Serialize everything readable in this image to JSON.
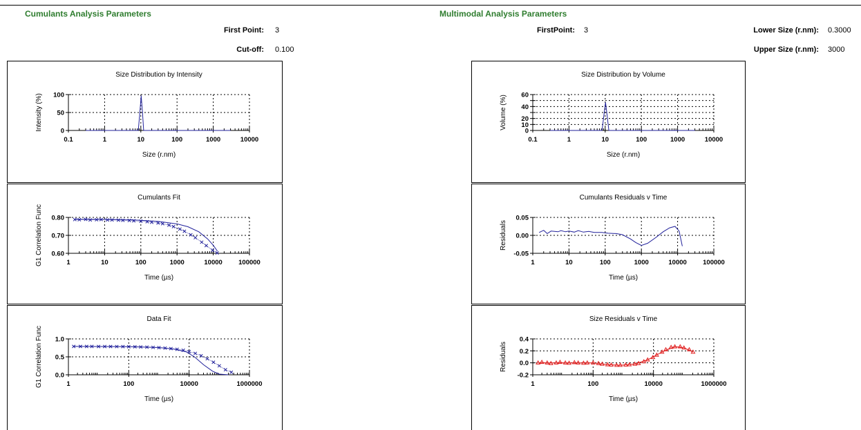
{
  "cumulants_params": {
    "title": "Cumulants Analysis Parameters",
    "first_point_label": "First Point:",
    "first_point_value": "3",
    "cutoff_label": "Cut-off:",
    "cutoff_value": "0.100"
  },
  "multimodal_params": {
    "title": "Multimodal Analysis Parameters",
    "first_point_label": "FirstPoint:",
    "first_point_value": "3",
    "lower_size_label": "Lower Size (r.nm):",
    "lower_size_value": "0.3000",
    "upper_size_label": "Upper Size (r.nm):",
    "upper_size_value": "3000"
  },
  "colors": {
    "section_title": "#2f7d2f",
    "series_blue": "#1f1f9a",
    "series_red": "#e02020"
  },
  "chart_data": [
    {
      "id": "size-intensity",
      "type": "line",
      "title": "Size Distribution by Intensity",
      "xlabel": "Size (r.nm)",
      "ylabel": "Intensity (%)",
      "xscale": "log",
      "xlim": [
        0.1,
        10000
      ],
      "ylim": [
        0,
        100
      ],
      "xticks": [
        0.1,
        1,
        10,
        100,
        1000,
        10000
      ],
      "xticklabels": [
        "0.1",
        "1",
        "10",
        "100",
        "1000",
        "10000"
      ],
      "yticks": [
        0,
        50,
        100
      ],
      "yticklabels": [
        "0",
        "50",
        "100"
      ],
      "grid": true,
      "series": [
        {
          "color": "#1f1f9a",
          "marker": "none",
          "points": [
            [
              0.3,
              0
            ],
            [
              8.5,
              0
            ],
            [
              9.4,
              50
            ],
            [
              10.2,
              97
            ],
            [
              11.1,
              50
            ],
            [
              12,
              0
            ],
            [
              3000,
              0
            ]
          ]
        }
      ]
    },
    {
      "id": "size-volume",
      "type": "line",
      "title": "Size Distribution by Volume",
      "xlabel": "Size (r.nm)",
      "ylabel": "Volume (%)",
      "xscale": "log",
      "xlim": [
        0.1,
        10000
      ],
      "ylim": [
        0,
        60
      ],
      "xticks": [
        0.1,
        1,
        10,
        100,
        1000,
        10000
      ],
      "xticklabels": [
        "0.1",
        "1",
        "10",
        "100",
        "1000",
        "10000"
      ],
      "yticks": [
        0,
        10,
        20,
        30,
        40,
        50,
        60
      ],
      "yticklabels": [
        "0",
        "10",
        "20",
        "",
        "40",
        "",
        "60"
      ],
      "grid": true,
      "series": [
        {
          "color": "#1f1f9a",
          "marker": "none",
          "points": [
            [
              0.3,
              0
            ],
            [
              8.2,
              0
            ],
            [
              9.2,
              25
            ],
            [
              10.2,
              47
            ],
            [
              11.3,
              25
            ],
            [
              12.6,
              0
            ],
            [
              3000,
              0
            ]
          ]
        }
      ]
    },
    {
      "id": "cumulants-fit",
      "type": "line",
      "title": "Cumulants Fit",
      "xlabel": "Time (µs)",
      "ylabel": "G1 Correlation Func",
      "xscale": "log",
      "xlim": [
        1,
        100000
      ],
      "ylim": [
        0.6,
        0.8
      ],
      "xticks": [
        1,
        10,
        100,
        1000,
        10000,
        100000
      ],
      "xticklabels": [
        "1",
        "10",
        "100",
        "1000",
        "10000",
        "100000"
      ],
      "yticks": [
        0.6,
        0.7,
        0.8
      ],
      "yticklabels": [
        "0.60",
        "0.70",
        "0.80"
      ],
      "grid": true,
      "series": [
        {
          "color": "#1f1f9a",
          "marker": "x",
          "points": [
            [
              1.5,
              0.788
            ],
            [
              2,
              0.787
            ],
            [
              3,
              0.789
            ],
            [
              4,
              0.786
            ],
            [
              6,
              0.787
            ],
            [
              8,
              0.788
            ],
            [
              12,
              0.786
            ],
            [
              16,
              0.786
            ],
            [
              24,
              0.785
            ],
            [
              32,
              0.784
            ],
            [
              48,
              0.783
            ],
            [
              64,
              0.781
            ],
            [
              100,
              0.779
            ],
            [
              150,
              0.776
            ],
            [
              200,
              0.773
            ],
            [
              300,
              0.769
            ],
            [
              400,
              0.765
            ],
            [
              600,
              0.757
            ],
            [
              800,
              0.749
            ],
            [
              1200,
              0.735
            ],
            [
              1600,
              0.723
            ],
            [
              2400,
              0.703
            ],
            [
              3200,
              0.687
            ],
            [
              4800,
              0.662
            ],
            [
              6400,
              0.643
            ],
            [
              9600,
              0.617
            ],
            [
              12800,
              0.602
            ]
          ]
        },
        {
          "color": "#1f1f9a",
          "marker": "none",
          "points": [
            [
              1.5,
              0.79
            ],
            [
              10,
              0.789
            ],
            [
              50,
              0.787
            ],
            [
              100,
              0.784
            ],
            [
              300,
              0.778
            ],
            [
              1000,
              0.764
            ],
            [
              2000,
              0.748
            ],
            [
              4000,
              0.72
            ],
            [
              7000,
              0.68
            ],
            [
              10000,
              0.645
            ],
            [
              13000,
              0.612
            ]
          ]
        }
      ]
    },
    {
      "id": "cumulants-residuals",
      "type": "line",
      "title": "Cumulants Residuals v Time",
      "xlabel": "Time (µs)",
      "ylabel": "Residuals",
      "xscale": "log",
      "xlim": [
        1,
        100000
      ],
      "ylim": [
        -0.05,
        0.05
      ],
      "xticks": [
        1,
        10,
        100,
        1000,
        10000,
        100000
      ],
      "xticklabels": [
        "1",
        "10",
        "100",
        "1000",
        "10000",
        "100000"
      ],
      "yticks": [
        -0.05,
        0,
        0.05
      ],
      "yticklabels": [
        "-0.05",
        "0.00",
        "0.05"
      ],
      "grid": true,
      "series": [
        {
          "color": "#1f1f9a",
          "marker": "none",
          "points": [
            [
              1.5,
              0.008
            ],
            [
              2,
              0.014
            ],
            [
              2.5,
              0.005
            ],
            [
              3.2,
              0.012
            ],
            [
              4,
              0.011
            ],
            [
              5,
              0.01
            ],
            [
              6,
              0.013
            ],
            [
              8,
              0.01
            ],
            [
              10,
              0.012
            ],
            [
              14,
              0.009
            ],
            [
              18,
              0.013
            ],
            [
              25,
              0.009
            ],
            [
              35,
              0.011
            ],
            [
              50,
              0.008
            ],
            [
              80,
              0.008
            ],
            [
              120,
              0.006
            ],
            [
              200,
              0.005
            ],
            [
              300,
              0.002
            ],
            [
              500,
              -0.01
            ],
            [
              700,
              -0.02
            ],
            [
              1000,
              -0.028
            ],
            [
              1500,
              -0.022
            ],
            [
              2500,
              -0.006
            ],
            [
              4000,
              0.01
            ],
            [
              6000,
              0.021
            ],
            [
              8500,
              0.025
            ],
            [
              11000,
              0.012
            ],
            [
              13500,
              -0.03
            ]
          ]
        }
      ]
    },
    {
      "id": "data-fit",
      "type": "line",
      "title": "Data Fit",
      "xlabel": "Time (µs)",
      "ylabel": "G1 Correlation Func",
      "xscale": "log",
      "xlim": [
        1,
        1000000
      ],
      "ylim": [
        0,
        1
      ],
      "xticks": [
        1,
        100,
        10000,
        1000000
      ],
      "xticklabels": [
        "1",
        "100",
        "10000",
        "1000000"
      ],
      "yticks": [
        0,
        0.5,
        1
      ],
      "yticklabels": [
        "0.0",
        "0.5",
        "1.0"
      ],
      "grid": true,
      "series": [
        {
          "color": "#1f1f9a",
          "marker": "x",
          "points": [
            [
              1.5,
              0.79
            ],
            [
              2.5,
              0.79
            ],
            [
              4,
              0.789
            ],
            [
              6,
              0.789
            ],
            [
              10,
              0.788
            ],
            [
              16,
              0.788
            ],
            [
              25,
              0.787
            ],
            [
              40,
              0.786
            ],
            [
              64,
              0.785
            ],
            [
              100,
              0.783
            ],
            [
              160,
              0.78
            ],
            [
              250,
              0.776
            ],
            [
              400,
              0.771
            ],
            [
              640,
              0.764
            ],
            [
              1000,
              0.756
            ],
            [
              1600,
              0.745
            ],
            [
              2500,
              0.73
            ],
            [
              4000,
              0.71
            ],
            [
              6400,
              0.683
            ],
            [
              10000,
              0.646
            ],
            [
              16000,
              0.596
            ],
            [
              25000,
              0.53
            ],
            [
              40000,
              0.447
            ],
            [
              64000,
              0.35
            ],
            [
              100000,
              0.25
            ],
            [
              160000,
              0.14
            ],
            [
              250000,
              0.07
            ]
          ]
        },
        {
          "color": "#1f1f9a",
          "marker": "none",
          "points": [
            [
              1.5,
              0.79
            ],
            [
              100,
              0.785
            ],
            [
              1000,
              0.76
            ],
            [
              3000,
              0.72
            ],
            [
              8000,
              0.64
            ],
            [
              15000,
              0.5
            ],
            [
              30000,
              0.28
            ],
            [
              60000,
              0.1
            ],
            [
              100000,
              0.02
            ],
            [
              200000,
              0.0
            ]
          ]
        }
      ]
    },
    {
      "id": "size-residuals",
      "type": "line",
      "title": "Size Residuals v Time",
      "xlabel": "Time (µs)",
      "ylabel": "Residuals",
      "xscale": "log",
      "xlim": [
        1,
        1000000
      ],
      "ylim": [
        -0.2,
        0.4
      ],
      "xticks": [
        1,
        100,
        10000,
        1000000
      ],
      "xticklabels": [
        "1",
        "100",
        "10000",
        "1000000"
      ],
      "yticks": [
        -0.2,
        0,
        0.2,
        0.4
      ],
      "yticklabels": [
        "-0.2",
        "0.0",
        "0.2",
        "0.4"
      ],
      "grid": true,
      "series": [
        {
          "color": "#e02020",
          "marker": "triangle",
          "points": [
            [
              1.5,
              0.0
            ],
            [
              2,
              0.01
            ],
            [
              3,
              0.0
            ],
            [
              4,
              -0.01
            ],
            [
              6,
              0.0
            ],
            [
              8,
              0.01
            ],
            [
              12,
              0.0
            ],
            [
              16,
              -0.005
            ],
            [
              24,
              0.005
            ],
            [
              32,
              0.0
            ],
            [
              48,
              -0.005
            ],
            [
              64,
              0.0
            ],
            [
              100,
              0.0
            ],
            [
              150,
              -0.01
            ],
            [
              200,
              -0.02
            ],
            [
              300,
              -0.03
            ],
            [
              400,
              -0.035
            ],
            [
              600,
              -0.04
            ],
            [
              800,
              -0.04
            ],
            [
              1200,
              -0.035
            ],
            [
              1600,
              -0.03
            ],
            [
              2400,
              -0.02
            ],
            [
              3200,
              -0.01
            ],
            [
              4800,
              0.02
            ],
            [
              6400,
              0.05
            ],
            [
              9600,
              0.09
            ],
            [
              12800,
              0.13
            ],
            [
              19200,
              0.18
            ],
            [
              25600,
              0.22
            ],
            [
              38400,
              0.26
            ],
            [
              51200,
              0.27
            ],
            [
              76800,
              0.27
            ],
            [
              102400,
              0.25
            ],
            [
              153600,
              0.22
            ],
            [
              204800,
              0.18
            ]
          ]
        },
        {
          "color": "#e02020",
          "marker": "none",
          "points": [
            [
              1.5,
              0.0
            ],
            [
              100,
              0.0
            ],
            [
              300,
              -0.03
            ],
            [
              800,
              -0.04
            ],
            [
              2400,
              -0.02
            ],
            [
              6400,
              0.05
            ],
            [
              19200,
              0.18
            ],
            [
              51200,
              0.27
            ],
            [
              102400,
              0.25
            ],
            [
              204800,
              0.18
            ]
          ]
        }
      ]
    }
  ]
}
